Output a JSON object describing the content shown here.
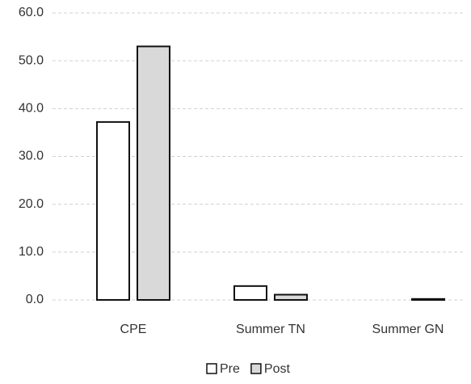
{
  "chart_data": {
    "type": "bar",
    "categories": [
      "CPE",
      "Summer TN",
      "Summer GN"
    ],
    "series": [
      {
        "name": "Pre",
        "color": "#ffffff",
        "values": [
          37.2,
          2.9,
          0.0
        ]
      },
      {
        "name": "Post",
        "color": "#d9d9d9",
        "values": [
          53.0,
          1.1,
          0.2
        ]
      }
    ],
    "ylim": [
      0,
      60
    ],
    "yticks": [
      {
        "value": 0,
        "label": "0.0"
      },
      {
        "value": 10,
        "label": "10.0"
      },
      {
        "value": 20,
        "label": "20.0"
      },
      {
        "value": 30,
        "label": "30.0"
      },
      {
        "value": 40,
        "label": "40.0"
      },
      {
        "value": 50,
        "label": "50.0"
      },
      {
        "value": 60,
        "label": "60.0"
      }
    ],
    "grid": true,
    "legend": "bottom"
  }
}
